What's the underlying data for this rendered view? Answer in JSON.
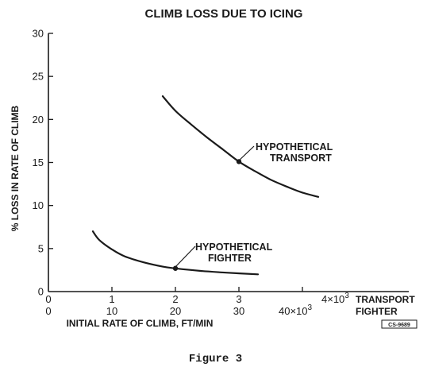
{
  "chart_data": {
    "type": "line",
    "title": "CLIMB LOSS DUE TO ICING",
    "ylabel": "% LOSS IN RATE OF CLIMB",
    "xlabel": "INITIAL RATE OF CLIMB, FT/MIN",
    "ylim": [
      0,
      30
    ],
    "yticks": [
      "0",
      "5",
      "10",
      "15",
      "20",
      "25",
      "30"
    ],
    "x_axes": [
      {
        "name": "TRANSPORT",
        "ticks": [
          "1",
          "2",
          "3"
        ],
        "last_tick": "4×10",
        "exponent": "3",
        "label": "TRANSPORT"
      },
      {
        "name": "FIGHTER",
        "ticks": [
          "0",
          "10",
          "20",
          "30"
        ],
        "last_tick": "40×10",
        "exponent": "3",
        "label": "FIGHTER"
      }
    ],
    "grid": false,
    "series": [
      {
        "name": "HYPOTHETICAL TRANSPORT",
        "label_lines": [
          "HYPOTHETICAL",
          "TRANSPORT"
        ],
        "x_units": "thousand ft/min (transport scale)",
        "x": [
          1.8,
          2.0,
          2.25,
          2.5,
          2.75,
          3.0,
          3.25,
          3.5,
          3.75,
          4.0,
          4.25
        ],
        "values": [
          22.7,
          21.0,
          19.4,
          17.9,
          16.5,
          15.1,
          14.0,
          13.0,
          12.2,
          11.5,
          11.0
        ],
        "marker": {
          "x": 3.0,
          "y": 15.1
        }
      },
      {
        "name": "HYPOTHETICAL FIGHTER",
        "label_lines": [
          "HYPOTHETICAL",
          "FIGHTER"
        ],
        "x_units": "thousand ft/min (fighter scale)",
        "x": [
          7,
          8,
          10,
          12,
          15,
          18,
          20,
          24,
          28,
          33
        ],
        "values": [
          7.0,
          6.0,
          4.9,
          4.1,
          3.4,
          2.9,
          2.7,
          2.4,
          2.2,
          2.0
        ],
        "marker": {
          "x": 20,
          "y": 2.7
        }
      }
    ]
  },
  "stamp": "CS-9689",
  "caption": "Figure 3"
}
